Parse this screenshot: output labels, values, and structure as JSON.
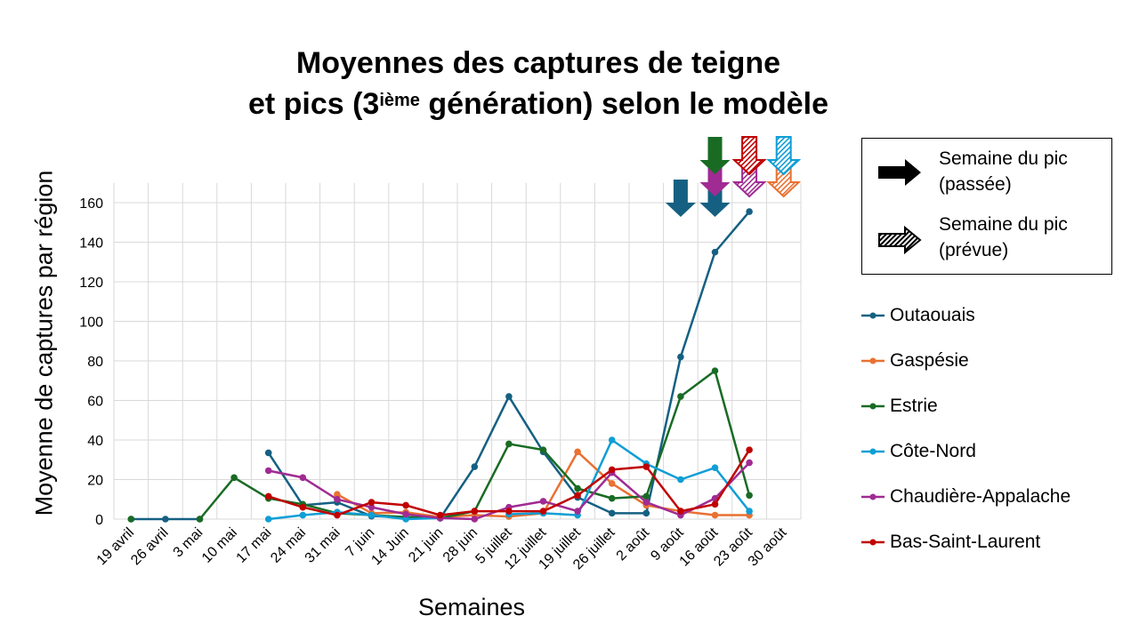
{
  "chart_data": {
    "type": "line",
    "title_line1": "Moyennes des captures de teigne",
    "title_line2_pre": "et pics (3",
    "title_line2_sup": "ième",
    "title_line2_post": " génération) selon le modèle",
    "xlabel": "Semaines",
    "ylabel": "Moyenne de captures par région",
    "ylim": [
      0,
      170
    ],
    "yticks": [
      0,
      20,
      40,
      60,
      80,
      100,
      120,
      140,
      160
    ],
    "grid": true,
    "legend_position": "right",
    "categories": [
      "19 avril",
      "26 avril",
      "3 mai",
      "10 mai",
      "17 mai",
      "24 mai",
      "31 mai",
      "7 juin",
      "14 Juin",
      "21 juin",
      "28 juin",
      "5 juillet",
      "12 juillet",
      "19 juillet",
      "26 juillet",
      "2 août",
      "9 août",
      "16 août",
      "23 août",
      "30 août"
    ],
    "series": [
      {
        "name": "Outaouais",
        "color": "#156082",
        "values": [
          0,
          0,
          0,
          null,
          33.5,
          7,
          8.5,
          1.5,
          1,
          0.5,
          26.5,
          62,
          34,
          11,
          3,
          3,
          82,
          135,
          155.5,
          null
        ]
      },
      {
        "name": "Gaspésie",
        "color": "#E97132",
        "values": [
          null,
          null,
          null,
          null,
          null,
          null,
          12.5,
          3,
          3.5,
          1,
          2,
          1.3,
          3,
          34,
          18,
          7,
          4,
          2,
          2,
          null
        ]
      },
      {
        "name": "Estrie",
        "color": "#196B24",
        "values": [
          0,
          null,
          0,
          21,
          10.5,
          7.5,
          3,
          2,
          1,
          0.5,
          4,
          38,
          35,
          15.5,
          10.5,
          11.5,
          62,
          75,
          12,
          null
        ]
      },
      {
        "name": "Côte-Nord",
        "color": "#0F9ED5",
        "values": [
          null,
          null,
          null,
          null,
          0,
          2,
          3.5,
          2,
          0,
          0.5,
          null,
          2.5,
          3,
          2,
          40,
          28,
          20,
          26,
          4,
          null
        ]
      },
      {
        "name": "Chaudière-Appalache",
        "color": "#A02B93",
        "values": [
          null,
          null,
          null,
          null,
          24.5,
          21,
          10,
          6,
          2.5,
          0.5,
          0,
          6,
          9,
          4,
          23.5,
          8.5,
          2,
          10.5,
          28.5,
          null
        ]
      },
      {
        "name": "Bas-Saint-Laurent",
        "color": "#C00000",
        "values": [
          null,
          null,
          null,
          null,
          11.5,
          6,
          2,
          8.5,
          7,
          2,
          4,
          4,
          4,
          12,
          25,
          26.5,
          4,
          7.5,
          35,
          null
        ]
      }
    ],
    "peak_arrows": [
      {
        "series": "Outaouais",
        "week": "9 août",
        "type": "passée",
        "color": "#156082"
      },
      {
        "series": "Outaouais",
        "week": "16 août",
        "type": "passée",
        "color": "#156082"
      },
      {
        "series": "Chaudière-Appalache",
        "week": "16 août",
        "type": "passée",
        "color": "#A02B93"
      },
      {
        "series": "Estrie",
        "week": "16 août",
        "type": "passée",
        "color": "#196B24"
      },
      {
        "series": "Chaudière-Appalache",
        "week": "23 août",
        "type": "prévue",
        "color": "#A02B93"
      },
      {
        "series": "Bas-Saint-Laurent",
        "week": "23 août",
        "type": "prévue",
        "color": "#C00000"
      },
      {
        "series": "Gaspésie",
        "week": "30 août",
        "type": "prévue",
        "color": "#E97132"
      },
      {
        "series": "Côte-Nord",
        "week": "30 août",
        "type": "prévue",
        "color": "#0F9ED5"
      }
    ],
    "arrow_legend": {
      "passed_line1": "Semaine du pic",
      "passed_line2": "(passée)",
      "predicted_line1": "Semaine du pic",
      "predicted_line2": "(prévue)"
    }
  }
}
